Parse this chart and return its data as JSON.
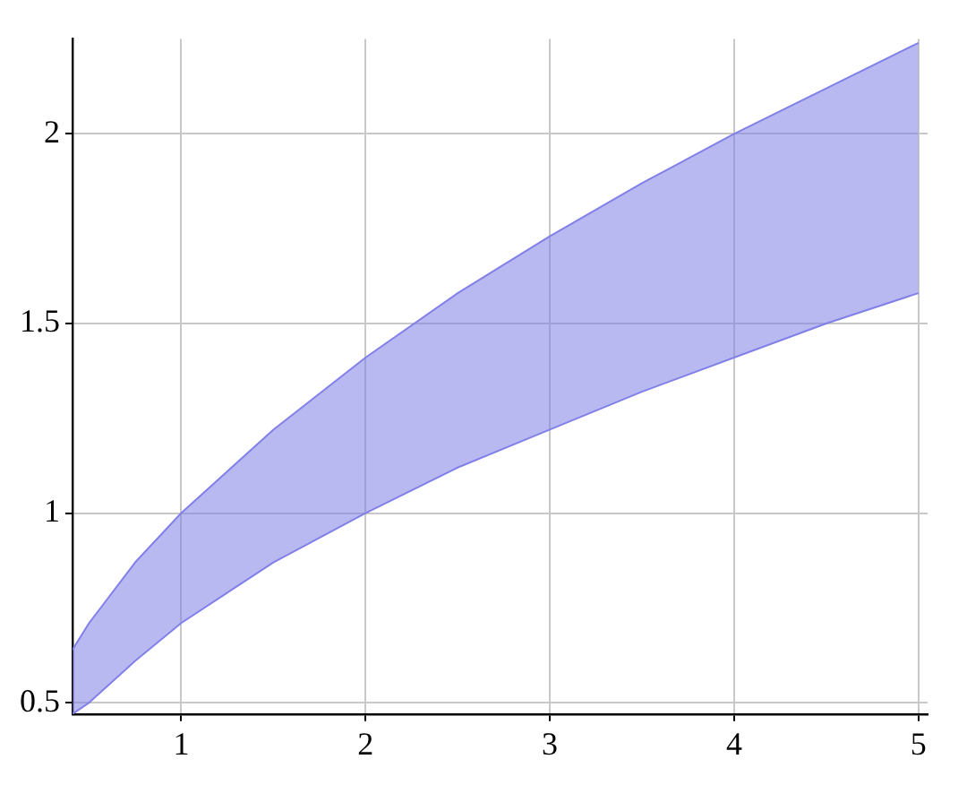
{
  "chart_data": {
    "type": "area",
    "x": [
      0.41,
      0.5,
      0.75,
      1,
      1.5,
      2,
      2.5,
      3,
      3.5,
      4,
      4.5,
      5
    ],
    "series": [
      {
        "type": "line",
        "color": "#8080e8",
        "values": [
          0.47,
          0.5,
          0.61,
          0.71,
          0.87,
          1,
          1.12,
          1.22,
          1.32,
          1.41,
          1.5,
          1.58
        ]
      },
      {
        "color": "#8080e8",
        "values": [
          0.64,
          0.71,
          0.87,
          1,
          1.22,
          1.41,
          1.58,
          1.73,
          1.87,
          2,
          2.12,
          2.24
        ]
      }
    ],
    "xlim": [
      0.41,
      5.05
    ],
    "ylim": [
      0.47,
      2.25
    ],
    "xticks": [
      1,
      2,
      3,
      4,
      5
    ],
    "yticks": [
      0.5,
      1,
      1.5,
      2
    ],
    "grid": true,
    "marker": "none",
    "line_style": "solid"
  }
}
